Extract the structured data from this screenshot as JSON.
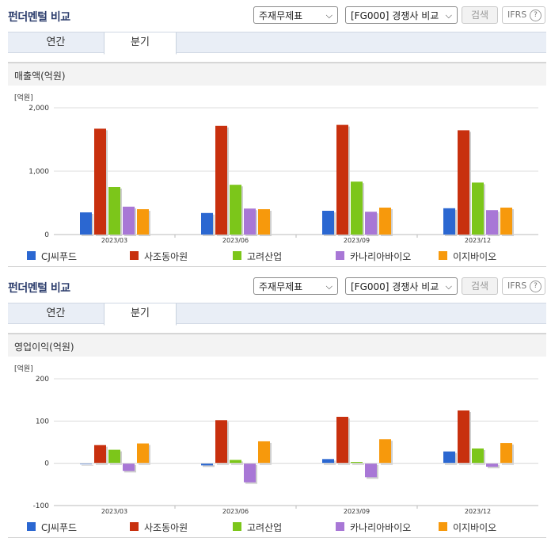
{
  "panels": [
    {
      "title": "펀더멘털 비교",
      "select1": "주재무제표",
      "select2": "[FG000] 경쟁사 비교",
      "search_button": "검색",
      "ifrs": "IFRS",
      "help_glyph": "?",
      "tabs": [
        "연간",
        "분기"
      ],
      "active_tab": 1,
      "metric": "매출액(억원)",
      "unit": "[억원]"
    },
    {
      "title": "펀더멘털 비교",
      "select1": "주재무제표",
      "select2": "[FG000] 경쟁사 비교",
      "search_button": "검색",
      "ifrs": "IFRS",
      "help_glyph": "?",
      "tabs": [
        "연간",
        "분기"
      ],
      "active_tab": 1,
      "metric": "영업이익(억원)",
      "unit": "[억원]"
    }
  ],
  "legend": [
    {
      "name": "CJ씨푸드",
      "color": "#2b67d1"
    },
    {
      "name": "사조동아원",
      "color": "#c8300e"
    },
    {
      "name": "고려산업",
      "color": "#7cc61a"
    },
    {
      "name": "카나리아바이오",
      "color": "#a877d6"
    },
    {
      "name": "이지바이오",
      "color": "#f7990c"
    }
  ],
  "chart_data": [
    {
      "type": "bar",
      "categories": [
        "2023/03",
        "2023/06",
        "2023/09",
        "2023/12"
      ],
      "ylim": [
        0,
        2000
      ],
      "yticks": [
        0,
        1000,
        2000
      ],
      "ytick_labels": [
        "0",
        "1,000",
        "2,000"
      ],
      "grid": true,
      "legend_position": "bottom",
      "series": [
        {
          "name": "CJ씨푸드",
          "values": [
            350,
            340,
            375,
            415
          ]
        },
        {
          "name": "사조동아원",
          "values": [
            1670,
            1715,
            1730,
            1645
          ]
        },
        {
          "name": "고려산업",
          "values": [
            750,
            785,
            835,
            820
          ]
        },
        {
          "name": "카나리아바이오",
          "values": [
            440,
            410,
            360,
            385
          ]
        },
        {
          "name": "이지바이오",
          "values": [
            400,
            400,
            425,
            425
          ]
        }
      ]
    },
    {
      "type": "bar",
      "categories": [
        "2023/03",
        "2023/06",
        "2023/09",
        "2023/12"
      ],
      "ylim": [
        -100,
        200
      ],
      "yticks": [
        -100,
        0,
        100,
        200
      ],
      "ytick_labels": [
        "-100",
        "0",
        "100",
        "200"
      ],
      "grid": true,
      "legend_position": "bottom",
      "series": [
        {
          "name": "CJ씨푸드",
          "values": [
            0,
            -5,
            10,
            28
          ]
        },
        {
          "name": "사조동아원",
          "values": [
            43,
            102,
            110,
            125
          ]
        },
        {
          "name": "고려산업",
          "values": [
            32,
            8,
            3,
            35
          ]
        },
        {
          "name": "카나리아바이오",
          "values": [
            -18,
            -45,
            -33,
            -8
          ]
        },
        {
          "name": "이지바이오",
          "values": [
            47,
            52,
            57,
            48
          ]
        }
      ]
    }
  ]
}
